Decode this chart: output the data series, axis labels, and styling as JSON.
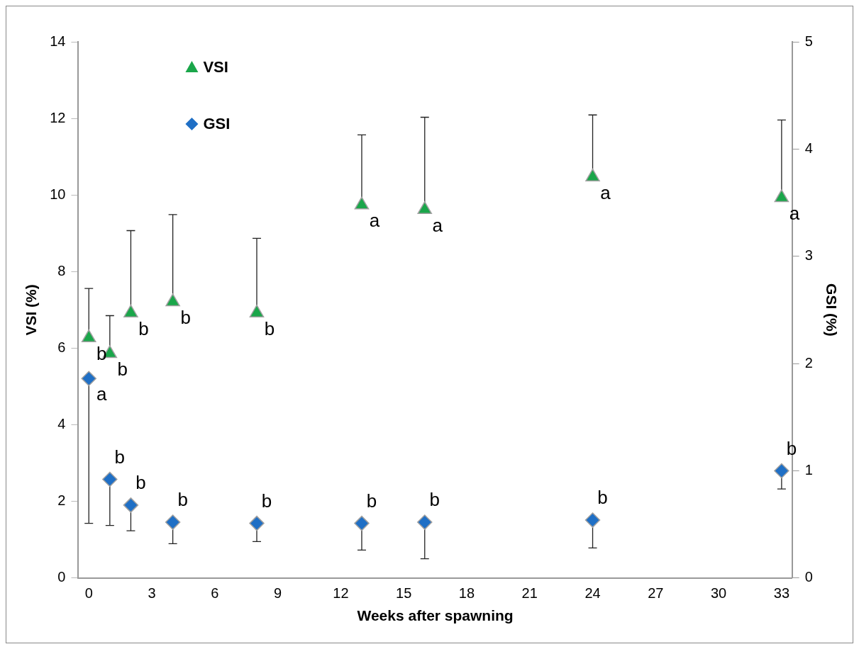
{
  "chart_data": {
    "type": "scatter",
    "xlabel": "Weeks after spawning",
    "ylabel": "VSI (%)",
    "y2label": "GSI (%)",
    "x": [
      0,
      1,
      2,
      4,
      8,
      13,
      16,
      24,
      33
    ],
    "xlim": [
      -0.5,
      33.5
    ],
    "xticks": [
      0,
      3,
      6,
      9,
      12,
      15,
      18,
      21,
      24,
      27,
      30,
      33
    ],
    "ylim": [
      0,
      14
    ],
    "yticks": [
      0,
      2,
      4,
      6,
      8,
      10,
      12,
      14
    ],
    "y2lim": [
      0,
      5
    ],
    "y2ticks": [
      0,
      1,
      2,
      3,
      4,
      5
    ],
    "grid": false,
    "legend": "top left",
    "series": [
      {
        "name": "VSI",
        "color": "#1aa64a",
        "marker": "triangle",
        "values": [
          6.27,
          5.86,
          6.92,
          7.21,
          6.92,
          9.74,
          9.62,
          10.47,
          9.93
        ],
        "errors": [
          [
            6.27,
            7.56
          ],
          [
            5.86,
            6.85
          ],
          [
            6.92,
            9.07
          ],
          [
            7.21,
            9.49
          ],
          [
            6.92,
            8.87
          ],
          [
            9.74,
            11.57
          ],
          [
            9.62,
            12.03
          ],
          [
            10.47,
            12.09
          ],
          [
            9.93,
            11.96
          ]
        ]
      },
      {
        "name": "GSI",
        "color": "#1f6fc5",
        "marker": "diamond",
        "axis": "y2",
        "values": [
          1.86,
          0.92,
          0.68,
          0.52,
          0.51,
          0.51,
          0.52,
          0.54,
          1.0
        ],
        "errors": [
          [
            0.51,
            1.86
          ],
          [
            0.49,
            0.92
          ],
          [
            0.44,
            0.68
          ],
          [
            0.32,
            0.52
          ],
          [
            0.34,
            0.51
          ],
          [
            0.26,
            0.51
          ],
          [
            0.18,
            0.52
          ],
          [
            0.28,
            0.54
          ],
          [
            0.83,
            1.0
          ]
        ]
      }
    ],
    "annotations": [
      {
        "text": "b",
        "x": 0,
        "y": 6.27
      },
      {
        "text": "b",
        "x": 1,
        "y": 5.86
      },
      {
        "text": "b",
        "x": 2,
        "y": 6.92
      },
      {
        "text": "b",
        "x": 4,
        "y": 7.21
      },
      {
        "text": "b",
        "x": 8,
        "y": 6.92
      },
      {
        "text": "a",
        "x": 13,
        "y": 9.74
      },
      {
        "text": "a",
        "x": 16,
        "y": 9.62
      },
      {
        "text": "a",
        "x": 24,
        "y": 10.47
      },
      {
        "text": "a",
        "x": 33,
        "y": 9.93
      },
      {
        "text": "a",
        "x": 0,
        "y": 5.21
      },
      {
        "text": "b",
        "x": 1,
        "y": 2.58
      },
      {
        "text": "b",
        "x": 2,
        "y": 1.9
      },
      {
        "text": "b",
        "x": 4,
        "y": 1.46
      },
      {
        "text": "b",
        "x": 8,
        "y": 1.43
      },
      {
        "text": "b",
        "x": 13,
        "y": 1.43
      },
      {
        "text": "b",
        "x": 16,
        "y": 1.46
      },
      {
        "text": "b",
        "x": 24,
        "y": 1.51
      },
      {
        "text": "b",
        "x": 33,
        "y": 2.8
      }
    ]
  }
}
